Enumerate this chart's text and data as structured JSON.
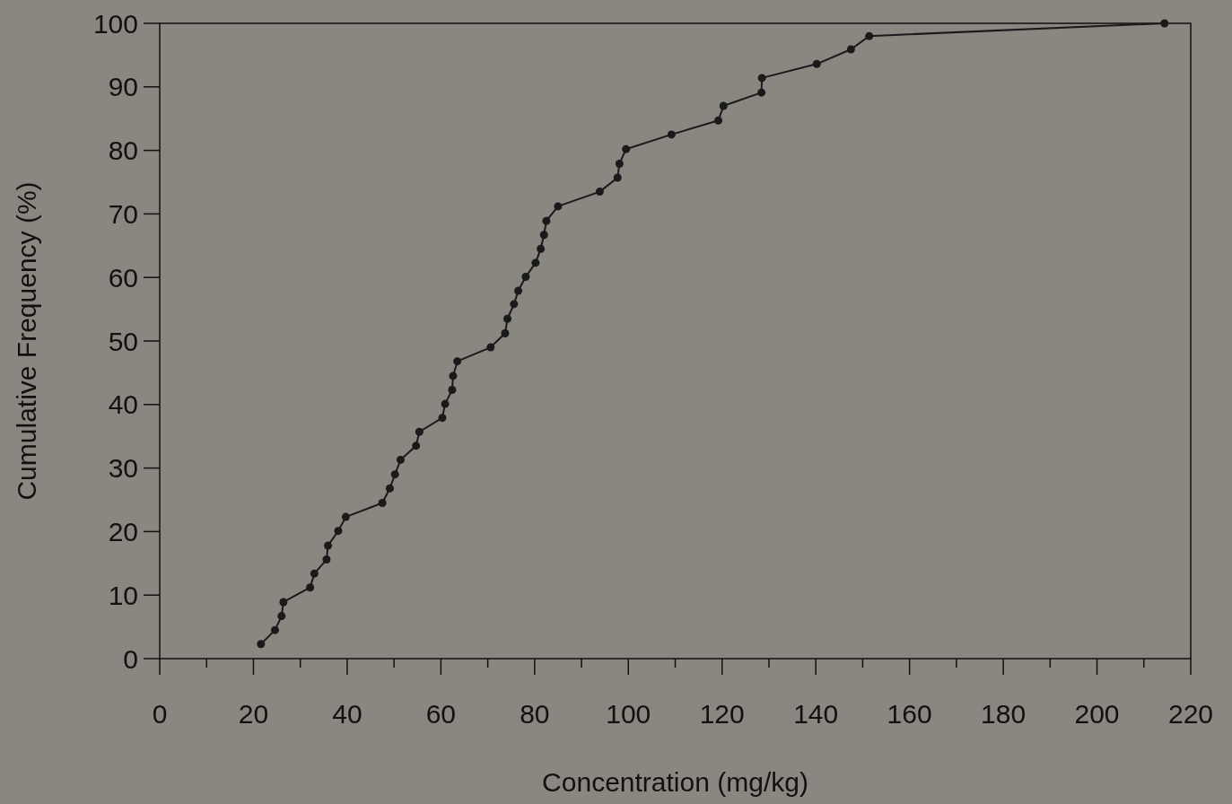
{
  "chart_data": {
    "type": "line",
    "xlabel": "Concentration (mg/kg)",
    "ylabel": "Cumulative Frequency (%)",
    "marker": "circle",
    "line_style": "solid",
    "xlim": [
      0,
      220
    ],
    "ylim": [
      0,
      100
    ],
    "xticks": [
      0,
      {
        "value": 10,
        "label": null
      },
      20,
      {
        "value": 30,
        "label": null
      },
      40,
      {
        "value": 50,
        "label": null
      },
      60,
      {
        "value": 70,
        "label": null
      },
      80,
      {
        "value": 90,
        "label": null
      },
      100,
      {
        "value": 110,
        "label": null
      },
      120,
      {
        "value": 130,
        "label": null
      },
      140,
      {
        "value": 150,
        "label": null
      },
      160,
      {
        "value": 170,
        "label": null
      },
      180,
      {
        "value": 190,
        "label": null
      },
      200,
      {
        "value": 210,
        "label": null
      },
      220
    ],
    "yticks": [
      0,
      10,
      20,
      30,
      40,
      50,
      60,
      70,
      80,
      90,
      100
    ],
    "series": [
      {
        "color": "#1a1a1a",
        "x": [
          21.6,
          24.6,
          26.0,
          26.4,
          32.1,
          33.0,
          35.6,
          35.9,
          38.1,
          39.7,
          47.5,
          49.1,
          50.2,
          51.4,
          54.7,
          55.4,
          60.3,
          60.9,
          62.4,
          62.6,
          63.5,
          70.6,
          73.7,
          74.2,
          75.6,
          76.5,
          78.1,
          80.2,
          81.3,
          82.0,
          82.5,
          85.0,
          93.9,
          97.7,
          98.1,
          99.5,
          109.2,
          119.2,
          120.3,
          128.4,
          128.5,
          140.2,
          147.5,
          151.4,
          214.4
        ],
        "values": [
          2.3,
          4.5,
          6.7,
          8.9,
          11.2,
          13.4,
          15.6,
          17.8,
          20.1,
          22.3,
          24.5,
          26.8,
          29.0,
          31.3,
          33.5,
          35.7,
          37.9,
          40.1,
          42.3,
          44.5,
          46.8,
          49.0,
          51.2,
          53.5,
          55.8,
          57.9,
          60.1,
          62.3,
          64.5,
          66.7,
          68.9,
          71.2,
          73.5,
          75.7,
          77.9,
          80.2,
          82.5,
          84.7,
          87.0,
          89.1,
          91.4,
          93.6,
          95.9,
          98.0,
          100
        ]
      }
    ]
  }
}
